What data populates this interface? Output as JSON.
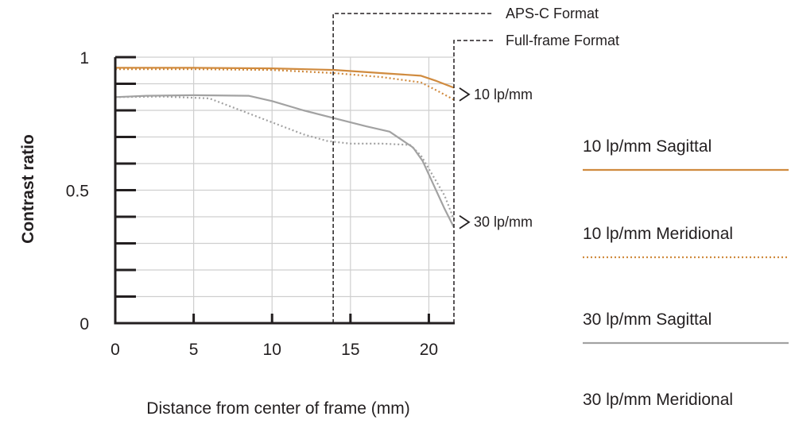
{
  "chart_data": {
    "type": "line",
    "title": "",
    "ylabel": "Contrast ratio",
    "xlabel": "Distance from center of frame (mm)",
    "xlim": [
      0,
      21.6
    ],
    "ylim": [
      0,
      1
    ],
    "x_ticks": [
      "0",
      "5",
      "10",
      "15",
      "20"
    ],
    "y_ticks": [
      "0",
      "0.5",
      "1"
    ],
    "grid": true,
    "legend_position": "right",
    "markers": [
      {
        "label": "APS-C Format",
        "x": 13.9
      },
      {
        "label": "Full-frame Format",
        "x": 21.6
      }
    ],
    "annotations": [
      {
        "label": "10 lp/mm",
        "y": 0.86
      },
      {
        "label": "30 lp/mm",
        "y": 0.38
      }
    ],
    "series": [
      {
        "name": "10 lp/mm Sagittal",
        "color": "#d08b3f",
        "style": "solid",
        "x": [
          0,
          5,
          10,
          14,
          17,
          19.5,
          20.5,
          21.6
        ],
        "y": [
          0.96,
          0.96,
          0.958,
          0.952,
          0.94,
          0.93,
          0.91,
          0.885
        ]
      },
      {
        "name": "10 lp/mm Meridional",
        "color": "#d08b3f",
        "style": "dotted",
        "x": [
          0,
          5,
          10,
          14,
          17,
          19.5,
          20.5,
          21.6
        ],
        "y": [
          0.955,
          0.955,
          0.952,
          0.94,
          0.925,
          0.905,
          0.875,
          0.84
        ]
      },
      {
        "name": "30 lp/mm Sagittal",
        "color": "#a2a2a2",
        "style": "solid",
        "x": [
          0,
          2,
          5,
          8.5,
          10,
          12,
          14,
          16,
          17.5,
          19,
          19.6,
          20.3,
          21,
          21.6
        ],
        "y": [
          0.85,
          0.855,
          0.857,
          0.855,
          0.835,
          0.8,
          0.77,
          0.74,
          0.72,
          0.66,
          0.61,
          0.52,
          0.43,
          0.36
        ]
      },
      {
        "name": "30 lp/mm Meridional",
        "color": "#a2a2a2",
        "style": "dotted",
        "x": [
          0,
          3,
          6,
          8,
          10,
          12,
          13.5,
          15,
          17,
          18.8,
          19.5,
          20.3,
          21,
          21.6
        ],
        "y": [
          0.85,
          0.852,
          0.845,
          0.8,
          0.755,
          0.71,
          0.685,
          0.675,
          0.675,
          0.67,
          0.63,
          0.55,
          0.48,
          0.39
        ]
      }
    ]
  }
}
